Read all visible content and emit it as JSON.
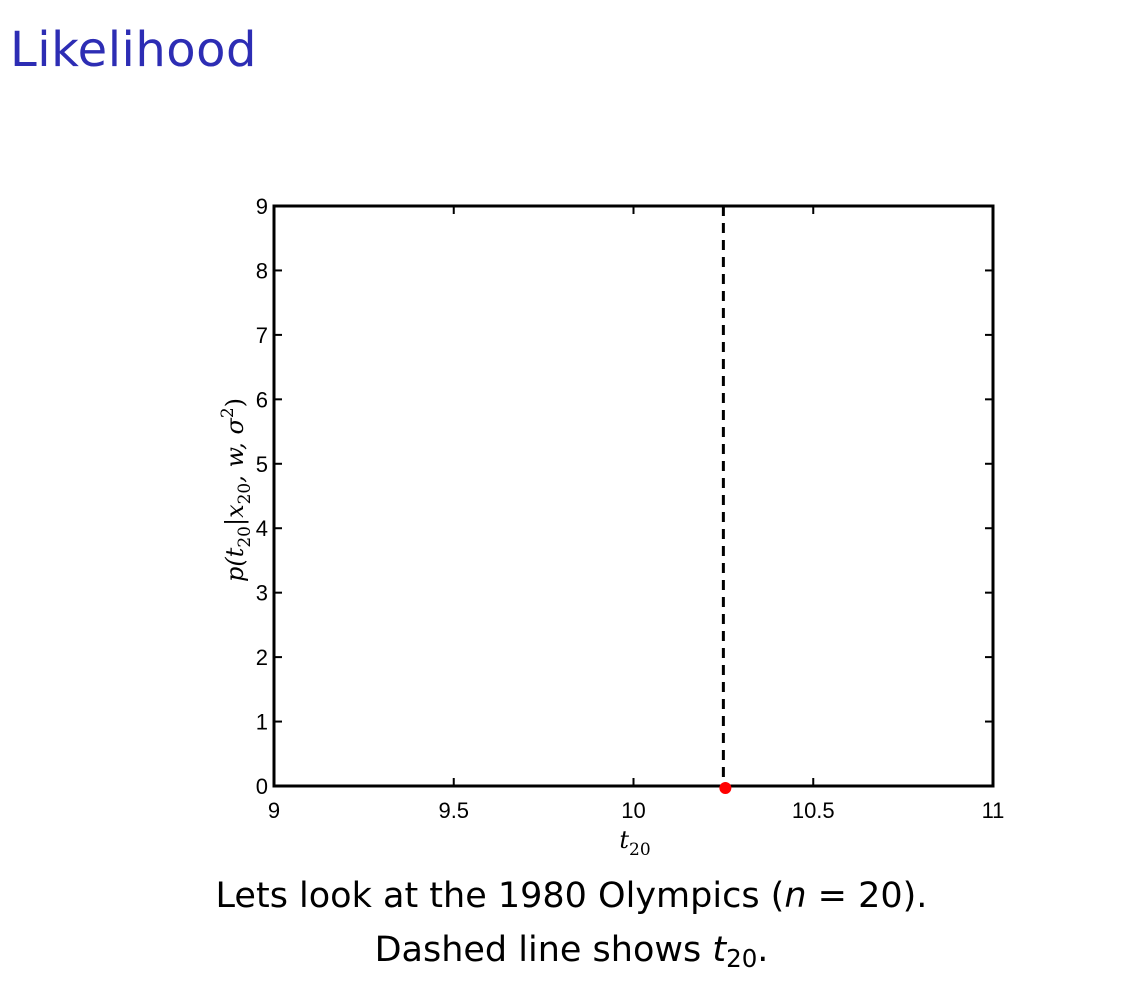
{
  "slide": {
    "title": "Likelihood",
    "caption_line1_prefix": "Lets look at the 1980 Olympics (",
    "caption_line1_var": "n",
    "caption_line1_eq": " = 20",
    "caption_line1_suffix": ").",
    "caption_line2_prefix": "Dashed line shows ",
    "caption_line2_var": "t",
    "caption_line2_sub": "20",
    "caption_line2_suffix": "."
  },
  "chart_data": {
    "type": "line",
    "xlabel_base": "t",
    "xlabel_sub": "20",
    "ylabel_text": "p(t",
    "ylabel_sub": "20",
    "ylabel_mid": "|x",
    "ylabel_sub2": "20",
    "ylabel_rest": ", w, σ",
    "ylabel_sup": "2",
    "ylabel_close": ")",
    "xlim": [
      9,
      11
    ],
    "ylim": [
      0,
      9
    ],
    "xticks": [
      9,
      9.5,
      10,
      10.5,
      11
    ],
    "xtick_labels": [
      "9",
      "9.5",
      "10",
      "10.5",
      "11"
    ],
    "yticks": [
      0,
      1,
      2,
      3,
      4,
      5,
      6,
      7,
      8,
      9
    ],
    "ytick_labels": [
      "0",
      "1",
      "2",
      "3",
      "4",
      "5",
      "6",
      "7",
      "8",
      "9"
    ],
    "grid": false,
    "dashed_line_x": 10.25,
    "point": {
      "x": 10.25,
      "y": 0
    },
    "colors": {
      "dashed": "#000000",
      "point": "#ff0000",
      "axes": "#000000"
    }
  }
}
